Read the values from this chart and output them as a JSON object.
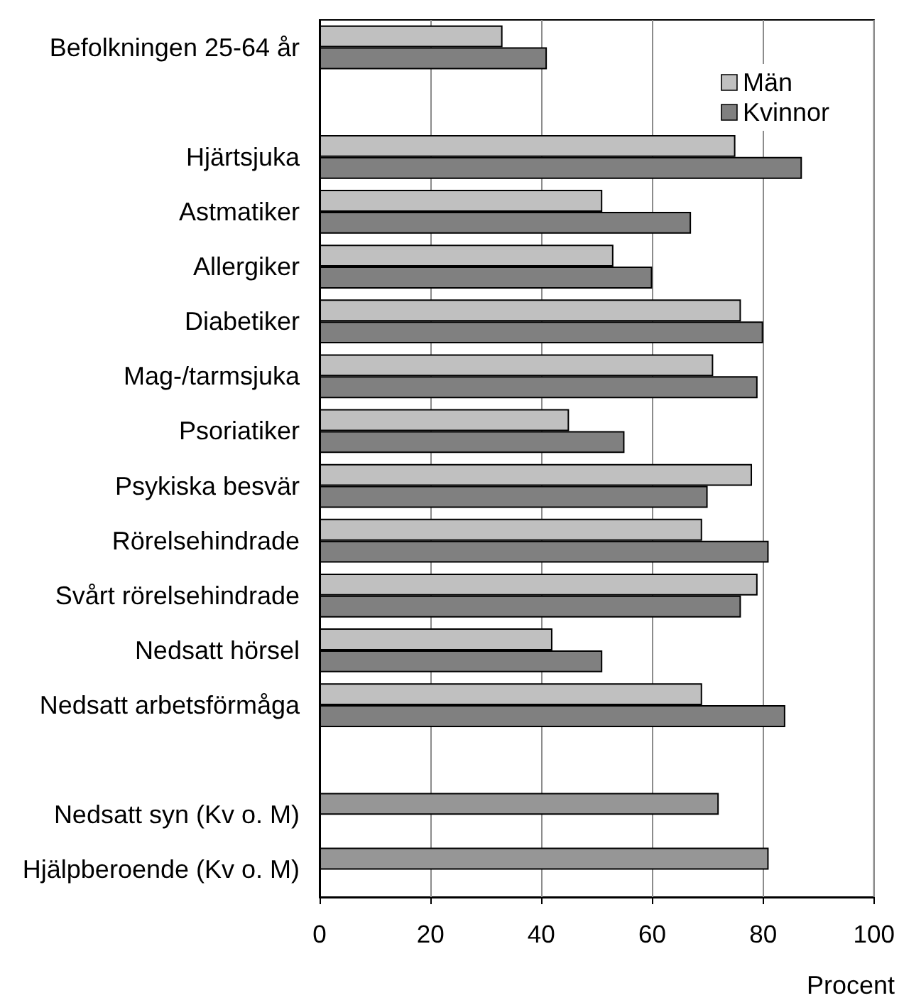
{
  "chart_data": {
    "type": "bar",
    "orientation": "horizontal",
    "categories": [
      "Befolkningen 25-64 år",
      null,
      "Hjärtsjuka",
      "Astmatiker",
      "Allergiker",
      "Diabetiker",
      "Mag-/tarmsjuka",
      "Psoriatiker",
      "Psykiska besvär",
      "Rörelsehindrade",
      "Svårt rörelsehindrade",
      "Nedsatt hörsel",
      "Nedsatt arbetsförmåga",
      null,
      "Nedsatt syn (Kv o. M)",
      "Hjälpberoende (Kv o. M)"
    ],
    "series": [
      {
        "name": "Män",
        "color": "#c0c0c0",
        "values": [
          33,
          null,
          75,
          51,
          53,
          76,
          71,
          45,
          78,
          69,
          79,
          42,
          69,
          null,
          null,
          null
        ]
      },
      {
        "name": "Kvinnor",
        "color": "#808080",
        "values": [
          41,
          null,
          87,
          67,
          60,
          80,
          79,
          55,
          70,
          81,
          76,
          51,
          84,
          null,
          null,
          null
        ]
      },
      {
        "color": "#969696",
        "values": [
          null,
          null,
          null,
          null,
          null,
          null,
          null,
          null,
          null,
          null,
          null,
          null,
          null,
          null,
          72,
          81
        ]
      }
    ],
    "xlim": [
      0,
      100
    ],
    "xticks": [
      0,
      20,
      40,
      60,
      80,
      100
    ],
    "xlabel": "Procent",
    "grid": "x",
    "legend": "top right"
  }
}
